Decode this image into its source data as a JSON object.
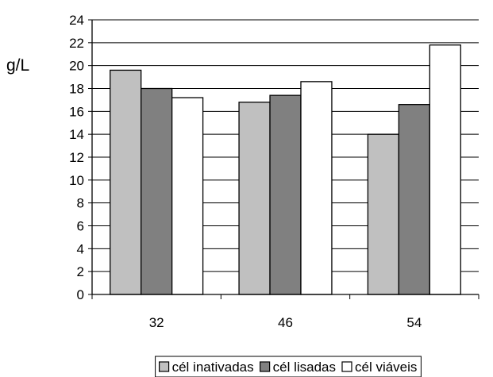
{
  "chart_data": {
    "type": "bar",
    "ylabel": "g/L",
    "xlabel": "",
    "categories": [
      "32",
      "46",
      "54"
    ],
    "series": [
      {
        "name": "cél inativadas",
        "values": [
          19.6,
          16.8,
          14.0
        ],
        "color": "#c0c0c0"
      },
      {
        "name": "cél lisadas",
        "values": [
          18.0,
          17.4,
          16.6
        ],
        "color": "#808080"
      },
      {
        "name": "cél viáveis",
        "values": [
          17.2,
          18.6,
          21.8
        ],
        "color": "#ffffff"
      }
    ],
    "ylim": [
      0,
      24
    ],
    "yticks": [
      0,
      2,
      4,
      6,
      8,
      10,
      12,
      14,
      16,
      18,
      20,
      22,
      24
    ],
    "grid": true,
    "legend_position": "bottom"
  }
}
